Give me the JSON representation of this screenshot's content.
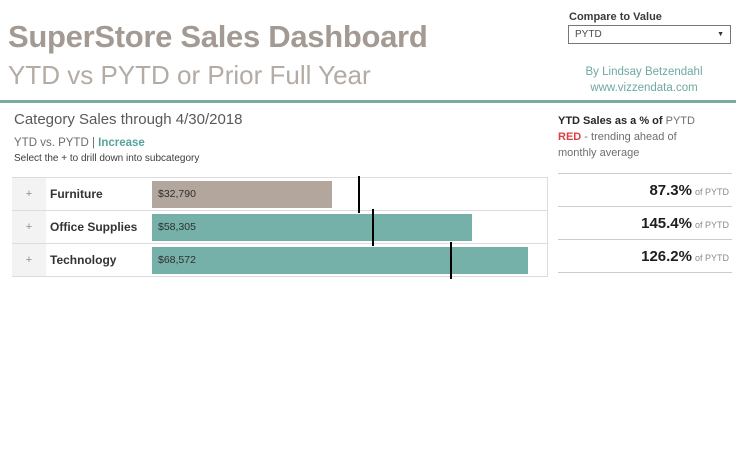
{
  "header": {
    "title": "SuperStore Sales Dashboard",
    "subtitle": "YTD vs PYTD or Prior Full Year",
    "compare_label": "Compare to Value",
    "compare_value": "PYTD",
    "byline": "By Lindsay Betzendahl",
    "website": "www.vizzendata.com"
  },
  "icons": {
    "dropdown_arrow": "▼"
  },
  "section": {
    "title": "Category Sales through 4/30/2018",
    "subtitle_prefix": "YTD vs. PYTD | ",
    "subtitle_highlight": "Increase",
    "note": "Select the + to drill down into subcategory"
  },
  "right_panel": {
    "line1_bold": "YTD Sales as a % of",
    "line1_rest": " PYTD",
    "line2_red": "RED",
    "line2_rest": " - trending ahead of",
    "line3": "monthly average"
  },
  "chart_data": {
    "type": "bar",
    "orientation": "horizontal",
    "title": "Category Sales through 4/30/2018",
    "categories": [
      "Furniture",
      "Office Supplies",
      "Technology"
    ],
    "values": [
      32790,
      58305,
      68572
    ],
    "value_labels": [
      "$32,790",
      "$58,305",
      "$68,572"
    ],
    "pct_of_pytd": [
      87.3,
      145.4,
      126.2
    ],
    "pct_labels": [
      "87.3%",
      "145.4%",
      "126.2%"
    ],
    "pct_suffix": "of PYTD",
    "pytd_reference_estimate": [
      37560,
      40100,
      54340
    ],
    "bar_colors": [
      "#b3a69d",
      "#76b1a9",
      "#76b1a9"
    ],
    "xlim": [
      0,
      72000
    ],
    "expand_glyph": "+",
    "legend": "none",
    "grid": false
  },
  "colors": {
    "accent_teal": "#76b1a9",
    "tan_bar": "#b3a69d",
    "teal_text": "#6fa9a1",
    "red_text": "#d84341",
    "rule_teal": "#7baaa3"
  }
}
